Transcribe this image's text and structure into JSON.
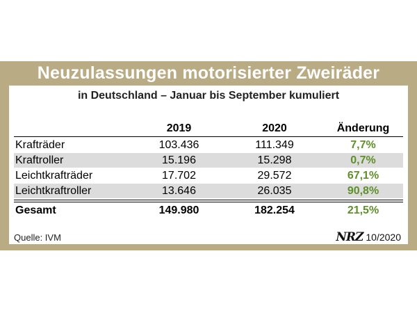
{
  "chart_data": {
    "type": "table",
    "title": "Neuzulassungen motorisierter Zweiräder",
    "subtitle": "in Deutschland – Januar bis September kumuliert",
    "columns": [
      "",
      "2019",
      "2020",
      "Änderung"
    ],
    "rows": [
      {
        "label": "Krafträder",
        "v2019": "103.436",
        "v2020": "111.349",
        "change": "7,7%"
      },
      {
        "label": "Kraftroller",
        "v2019": "15.196",
        "v2020": "15.298",
        "change": "0,7%"
      },
      {
        "label": "Leichtkrafträder",
        "v2019": "17.702",
        "v2020": "29.572",
        "change": "67,1%"
      },
      {
        "label": "Leichtkraftroller",
        "v2019": "13.646",
        "v2020": "26.035",
        "change": "90,8%"
      }
    ],
    "total": {
      "label": "Gesamt",
      "v2019": "149.980",
      "v2020": "182.254",
      "change": "21,5%"
    },
    "source": "Quelle: IVM",
    "brand": "NRZ",
    "date": "10/2020",
    "colors": {
      "frame": "#b9ab84",
      "positive": "#5f8f2a",
      "shade": "#dcdcdc"
    }
  }
}
